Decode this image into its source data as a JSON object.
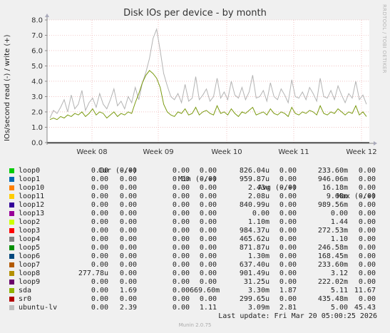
{
  "chart_data": {
    "type": "line",
    "title": "Disk IOs per device - by month",
    "ylabel": "IOs/second read (-) / write (+)",
    "ylim": [
      -0.05,
      8.0
    ],
    "yticks": [
      "0.0",
      "1.0",
      "2.0",
      "3.0",
      "4.0",
      "5.0",
      "6.0",
      "7.0",
      "8.0"
    ],
    "xticks": [
      "Week 08",
      "Week 09",
      "Week 10",
      "Week 11",
      "Week 12"
    ],
    "grid": true,
    "series": [
      {
        "name": "ubuntu-lv",
        "color": "#b4b4b4",
        "values": [
          1.6,
          2.1,
          1.9,
          2.3,
          2.8,
          2.0,
          3.1,
          2.2,
          2.5,
          3.4,
          2.1,
          2.6,
          2.9,
          2.3,
          3.2,
          2.5,
          2.2,
          2.8,
          3.5,
          2.4,
          2.7,
          2.2,
          3.0,
          2.6,
          3.6,
          2.8,
          3.9,
          4.6,
          5.5,
          6.8,
          7.4,
          6.0,
          4.5,
          3.7,
          3.0,
          2.8,
          3.2,
          2.6,
          3.8,
          2.7,
          2.9,
          4.3,
          2.8,
          3.1,
          3.5,
          2.7,
          3.0,
          4.2,
          2.9,
          3.3,
          2.8,
          4.0,
          3.1,
          2.9,
          3.6,
          2.8,
          3.3,
          4.4,
          2.9,
          3.0,
          3.4,
          2.7,
          3.9,
          3.0,
          2.8,
          3.5,
          3.1,
          2.6,
          4.1,
          3.0,
          2.9,
          3.3,
          2.8,
          3.6,
          3.2,
          2.7,
          4.2,
          3.0,
          2.9,
          3.4,
          2.8,
          3.7,
          3.1,
          2.6,
          3.2,
          2.9,
          4.0,
          2.8,
          3.1,
          2.5
        ]
      },
      {
        "name": "sda",
        "color": "#7a9a10",
        "values": [
          1.5,
          1.6,
          1.5,
          1.7,
          1.6,
          1.8,
          1.7,
          1.9,
          1.8,
          2.0,
          1.7,
          1.9,
          2.2,
          1.8,
          2.0,
          1.9,
          1.6,
          1.8,
          2.0,
          1.7,
          1.9,
          1.8,
          2.0,
          1.9,
          2.6,
          3.2,
          3.9,
          4.4,
          4.7,
          4.5,
          4.2,
          3.6,
          2.5,
          2.0,
          1.8,
          1.7,
          2.0,
          1.9,
          2.2,
          1.8,
          1.9,
          2.3,
          1.8,
          2.0,
          2.1,
          1.9,
          1.8,
          2.4,
          1.9,
          2.0,
          1.8,
          2.2,
          1.9,
          1.7,
          2.0,
          1.9,
          2.1,
          2.3,
          1.8,
          1.9,
          2.0,
          1.8,
          2.2,
          1.9,
          1.8,
          2.0,
          1.9,
          1.7,
          2.3,
          1.9,
          1.8,
          2.0,
          1.9,
          2.1,
          2.0,
          1.8,
          2.4,
          1.9,
          1.8,
          2.0,
          1.9,
          2.2,
          2.0,
          1.8,
          2.0,
          1.9,
          2.4,
          1.8,
          2.0,
          1.7
        ]
      }
    ]
  },
  "columns": {
    "cur": "Cur (-/+)",
    "min": "Min (-/+)",
    "avg": "Avg (-/+)",
    "max": "Max (-/+)"
  },
  "legend": [
    {
      "name": "loop0",
      "color": "#00cc00",
      "cur_r": "0.00",
      "cur_w": "0.00",
      "min_r": "0.00",
      "min_w": "0.00",
      "avg_r": "826.04u",
      "avg_w": "0.00",
      "max_r": "233.60m",
      "max_w": "0.00"
    },
    {
      "name": "loop1",
      "color": "#0066b3",
      "cur_r": "0.00",
      "cur_w": "0.00",
      "min_r": "0.00",
      "min_w": "0.00",
      "avg_r": "959.87u",
      "avg_w": "0.00",
      "max_r": "946.06m",
      "max_w": "0.00"
    },
    {
      "name": "loop10",
      "color": "#ff8000",
      "cur_r": "0.00",
      "cur_w": "0.00",
      "min_r": "0.00",
      "min_w": "0.00",
      "avg_r": "2.43u",
      "avg_w": "0.00",
      "max_r": "16.18m",
      "max_w": "0.00"
    },
    {
      "name": "loop11",
      "color": "#ffcc00",
      "cur_r": "0.00",
      "cur_w": "0.00",
      "min_r": "0.00",
      "min_w": "0.00",
      "avg_r": "2.08u",
      "avg_w": "0.00",
      "max_r": "9.68m",
      "max_w": "0.00"
    },
    {
      "name": "loop12",
      "color": "#330099",
      "cur_r": "0.00",
      "cur_w": "0.00",
      "min_r": "0.00",
      "min_w": "0.00",
      "avg_r": "840.99u",
      "avg_w": "0.00",
      "max_r": "989.56m",
      "max_w": "0.00"
    },
    {
      "name": "loop13",
      "color": "#990099",
      "cur_r": "0.00",
      "cur_w": "0.00",
      "min_r": "0.00",
      "min_w": "0.00",
      "avg_r": "0.00",
      "avg_w": "0.00",
      "max_r": "0.00",
      "max_w": "0.00"
    },
    {
      "name": "loop2",
      "color": "#ccff00",
      "cur_r": "0.00",
      "cur_w": "0.00",
      "min_r": "0.00",
      "min_w": "0.00",
      "avg_r": "1.10m",
      "avg_w": "0.00",
      "max_r": "1.44",
      "max_w": "0.00"
    },
    {
      "name": "loop3",
      "color": "#ff0000",
      "cur_r": "0.00",
      "cur_w": "0.00",
      "min_r": "0.00",
      "min_w": "0.00",
      "avg_r": "984.37u",
      "avg_w": "0.00",
      "max_r": "272.53m",
      "max_w": "0.00"
    },
    {
      "name": "loop4",
      "color": "#808080",
      "cur_r": "0.00",
      "cur_w": "0.00",
      "min_r": "0.00",
      "min_w": "0.00",
      "avg_r": "465.62u",
      "avg_w": "0.00",
      "max_r": "1.10",
      "max_w": "0.00"
    },
    {
      "name": "loop5",
      "color": "#008f00",
      "cur_r": "0.00",
      "cur_w": "0.00",
      "min_r": "0.00",
      "min_w": "0.00",
      "avg_r": "871.87u",
      "avg_w": "0.00",
      "max_r": "246.58m",
      "max_w": "0.00"
    },
    {
      "name": "loop6",
      "color": "#00487d",
      "cur_r": "0.00",
      "cur_w": "0.00",
      "min_r": "0.00",
      "min_w": "0.00",
      "avg_r": "1.30m",
      "avg_w": "0.00",
      "max_r": "168.45m",
      "max_w": "0.00"
    },
    {
      "name": "loop7",
      "color": "#b35a00",
      "cur_r": "0.00",
      "cur_w": "0.00",
      "min_r": "0.00",
      "min_w": "0.00",
      "avg_r": "637.40u",
      "avg_w": "0.00",
      "max_r": "233.60m",
      "max_w": "0.00"
    },
    {
      "name": "loop8",
      "color": "#b38f00",
      "cur_r": "277.78u",
      "cur_w": "0.00",
      "min_r": "0.00",
      "min_w": "0.00",
      "avg_r": "901.49u",
      "avg_w": "0.00",
      "max_r": "3.12",
      "max_w": "0.00"
    },
    {
      "name": "loop9",
      "color": "#6b006b",
      "cur_r": "0.00",
      "cur_w": "0.00",
      "min_r": "0.00",
      "min_w": "0.00",
      "avg_r": "31.25u",
      "avg_w": "0.00",
      "max_r": "222.02m",
      "max_w": "0.00"
    },
    {
      "name": "sda",
      "color": "#8fb300",
      "cur_r": "0.00",
      "cur_w": "1.69",
      "min_r": "0.00",
      "min_w": "669.60m",
      "avg_r": "3.30m",
      "avg_w": "1.87",
      "max_r": "5.11",
      "max_w": "11.67"
    },
    {
      "name": "sr0",
      "color": "#b30000",
      "cur_r": "0.00",
      "cur_w": "0.00",
      "min_r": "0.00",
      "min_w": "0.00",
      "avg_r": "299.65u",
      "avg_w": "0.00",
      "max_r": "435.48m",
      "max_w": "0.00"
    },
    {
      "name": "ubuntu-lv",
      "color": "#bebebe",
      "cur_r": "0.00",
      "cur_w": "2.39",
      "min_r": "0.00",
      "min_w": "1.11",
      "avg_r": "3.09m",
      "avg_w": "2.81",
      "max_r": "5.00",
      "max_w": "45.43"
    }
  ],
  "last_update": "Last update: Fri Mar 20 05:00:25 2026",
  "footer": "Munin 2.0.75",
  "vendor": "RRDTOOL / TOBI OETIKER"
}
